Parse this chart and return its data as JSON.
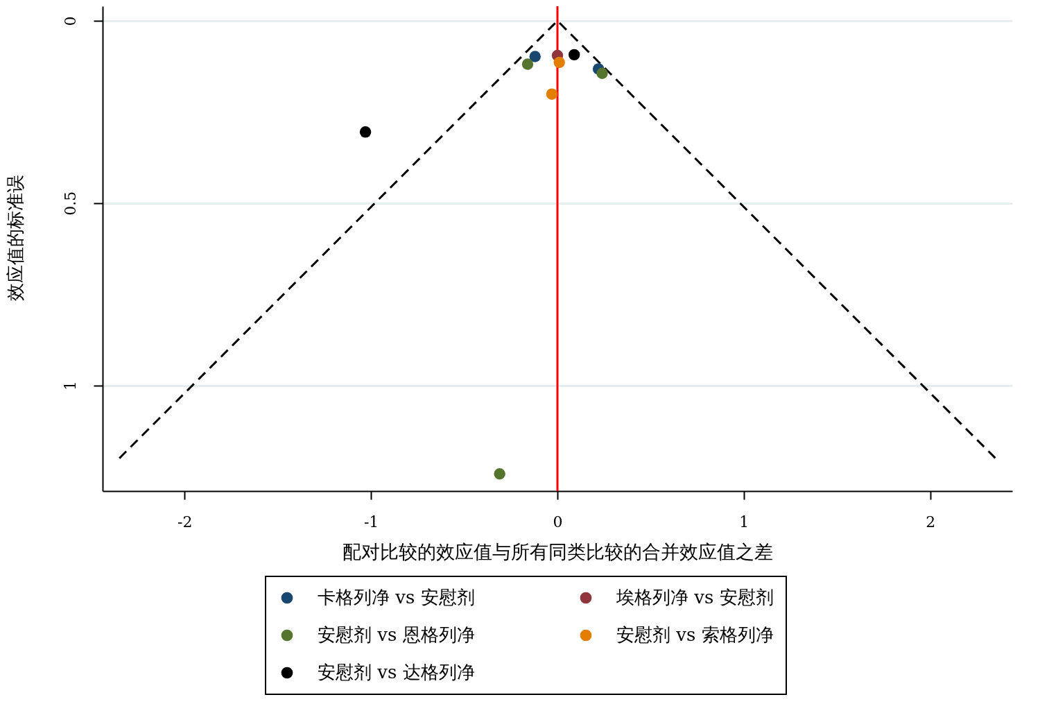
{
  "chart_data": {
    "type": "scatter",
    "xlabel": "配对比较的效应值与所有同类比较的合并效应值之差",
    "ylabel": "效应值的标准误",
    "series": [
      {
        "name": "卡格列净 vs 安慰剂",
        "color": "#1a476f",
        "x": [
          -0.12,
          0.22
        ],
        "values": [
          0.098,
          0.132
        ]
      },
      {
        "name": "埃格列净 vs 安慰剂",
        "color": "#90353b",
        "x": [
          0
        ],
        "values": [
          0.095
        ]
      },
      {
        "name": "安慰剂 vs 恩格列净",
        "color": "#55752f",
        "x": [
          -0.16,
          0.24,
          -0.31
        ],
        "values": [
          0.119,
          0.144,
          1.243
        ]
      },
      {
        "name": "安慰剂 vs 索格列净",
        "color": "#e37e00",
        "x": [
          0.01,
          -0.03
        ],
        "values": [
          0.114,
          0.201
        ]
      },
      {
        "name": "安慰剂 vs 达格列净",
        "color": "#000000",
        "x": [
          0.09,
          -1.03
        ],
        "values": [
          0.093,
          0.305
        ]
      },
      {
        "type": "line",
        "color": "#000000",
        "x": [
          -2.35,
          0,
          2.35
        ],
        "values": [
          1.2,
          0,
          1.2
        ],
        "line_style": "dashed",
        "marker": "none"
      }
    ],
    "xlim": [
      -2.44,
      2.44
    ],
    "ylim": [
      1.29,
      -0.04
    ],
    "xticks": [
      -2,
      -1,
      0,
      1,
      2
    ],
    "yticks": [
      0,
      0.5,
      1
    ],
    "ref_lines": [
      {
        "axis": "x",
        "value": 0,
        "color": "#ff0000"
      }
    ],
    "grid": "y",
    "legend": "bottom",
    "marker": "circle"
  }
}
